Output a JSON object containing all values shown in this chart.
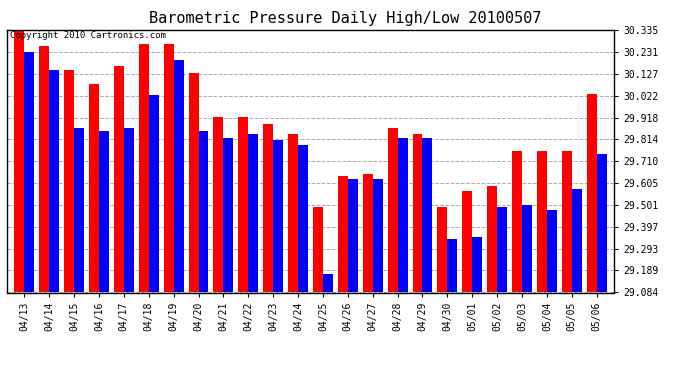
{
  "title": "Barometric Pressure Daily High/Low 20100507",
  "copyright": "Copyright 2010 Cartronics.com",
  "dates": [
    "04/13",
    "04/14",
    "04/15",
    "04/16",
    "04/17",
    "04/18",
    "04/19",
    "04/20",
    "04/21",
    "04/22",
    "04/23",
    "04/24",
    "04/25",
    "04/26",
    "04/27",
    "04/28",
    "04/29",
    "04/30",
    "05/01",
    "05/02",
    "05/03",
    "05/04",
    "05/05",
    "05/06"
  ],
  "highs": [
    30.34,
    30.26,
    30.145,
    30.08,
    30.165,
    30.27,
    30.27,
    30.13,
    29.92,
    29.92,
    29.885,
    29.84,
    29.49,
    29.64,
    29.65,
    29.87,
    29.84,
    29.49,
    29.57,
    29.59,
    29.76,
    29.76,
    29.76,
    30.03
  ],
  "lows": [
    30.23,
    30.145,
    29.87,
    29.855,
    29.87,
    30.025,
    30.19,
    29.855,
    29.82,
    29.84,
    29.81,
    29.785,
    29.17,
    29.625,
    29.625,
    29.82,
    29.82,
    29.34,
    29.35,
    29.49,
    29.5,
    29.478,
    29.578,
    29.745
  ],
  "ymin": 29.084,
  "ymax": 30.335,
  "yticks": [
    29.084,
    29.189,
    29.293,
    29.397,
    29.501,
    29.605,
    29.71,
    29.814,
    29.918,
    30.022,
    30.127,
    30.231,
    30.335
  ],
  "high_color": "#ff0000",
  "low_color": "#0000ff",
  "bg_color": "#ffffff",
  "grid_color": "#aaaaaa",
  "title_fontsize": 11,
  "copyright_fontsize": 6.5,
  "tick_fontsize": 7,
  "bar_width": 0.4
}
